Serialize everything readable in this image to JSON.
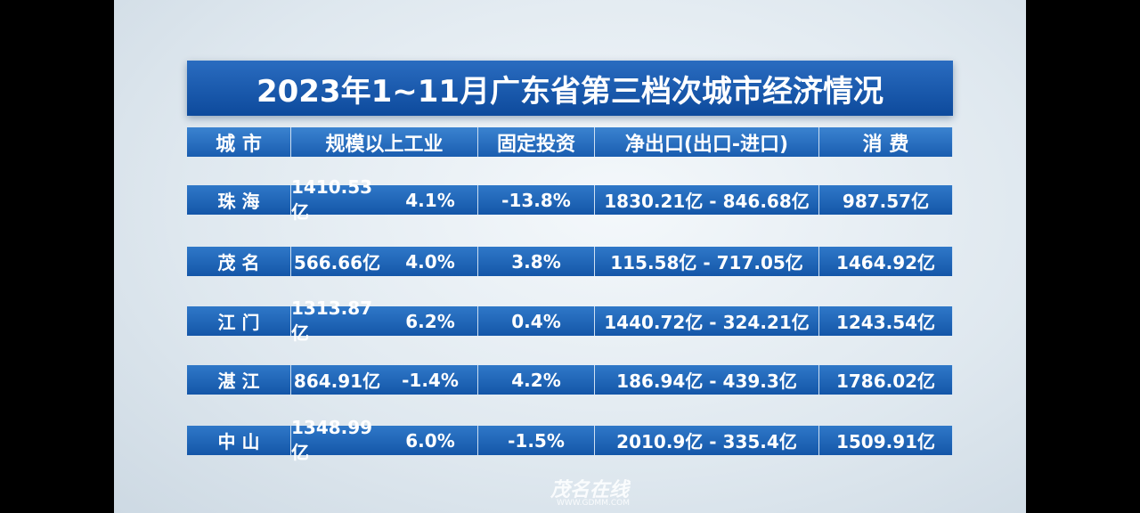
{
  "title": "2023年1~11月广东省第三档次城市经济情况",
  "table": {
    "header": [
      "城 市",
      "规模以上工业",
      "固定投资",
      "净出口(出口-进口)",
      "消 费"
    ],
    "rows": [
      [
        "珠 海",
        "1410.53亿",
        "4.1%",
        "-13.8%",
        "1830.21亿 - 846.68亿",
        "987.57亿"
      ],
      [
        "茂 名",
        "566.66亿",
        "4.0%",
        "3.8%",
        "115.58亿 - 717.05亿",
        "1464.92亿"
      ],
      [
        "江 门",
        "1313.87亿",
        "6.2%",
        "0.4%",
        "1440.72亿 - 324.21亿",
        "1243.54亿"
      ],
      [
        "湛 江",
        "864.91亿",
        "-1.4%",
        "4.2%",
        "186.94亿 - 439.3亿",
        "1786.02亿"
      ],
      [
        "中 山",
        "1348.99亿",
        "6.0%",
        "-1.5%",
        "2010.9亿 - 335.4亿",
        "1509.91亿"
      ]
    ]
  },
  "watermark": {
    "name": "茂名在线",
    "url": "WWW.GDMM.COM"
  }
}
